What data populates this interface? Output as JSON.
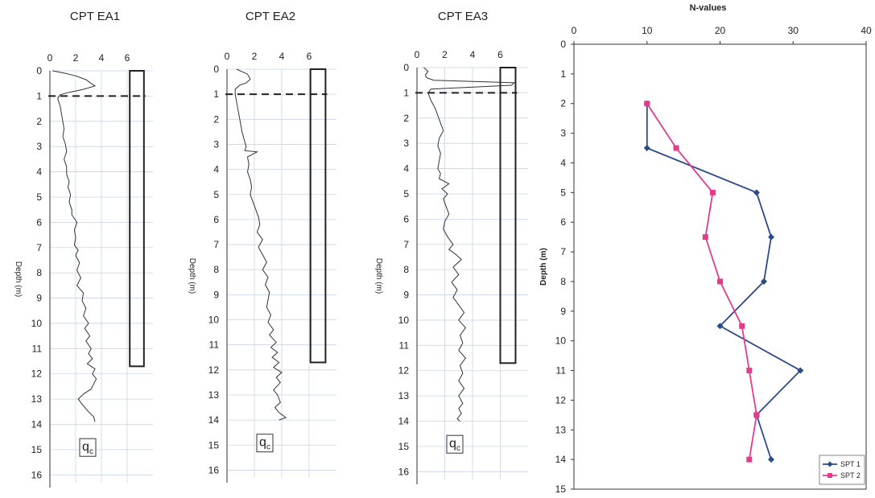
{
  "chart_data": [
    {
      "type": "line",
      "title": "CPT EA1",
      "ylabel": "Depth (m)",
      "xticks": [
        "0",
        "2",
        "4",
        "6"
      ],
      "yticks": [
        "0",
        "1",
        "2",
        "3",
        "4",
        "5",
        "6",
        "7",
        "8",
        "9",
        "10",
        "11",
        "12",
        "13",
        "14",
        "15",
        "16"
      ],
      "xlim": [
        0,
        8
      ],
      "ylim": [
        0,
        16.5
      ],
      "annotation": "q",
      "annotation_sub": "c",
      "water_table_depth": 1.0,
      "overlay_box": {
        "x_from": 6.2,
        "x_to": 7.3,
        "depth_from": 0,
        "depth_to": 11.7
      },
      "series": [
        {
          "x": [
            0.2,
            1.2,
            2.0,
            2.8,
            3.2,
            3.5,
            2.5,
            1.5,
            0.8,
            0.6,
            0.8,
            0.9,
            1.0,
            1.1,
            1.0,
            1.2,
            1.3,
            1.1,
            1.3,
            1.3,
            1.5,
            1.4,
            1.6,
            1.5,
            1.7,
            1.7,
            2.1,
            1.9,
            2.0,
            1.9,
            2.2,
            2.0,
            2.3,
            2.1,
            2.4,
            2.1,
            2.6,
            2.5,
            2.8,
            2.6,
            3.0,
            2.7,
            3.1,
            2.8,
            3.2,
            3.0,
            3.3,
            2.9,
            3.5,
            3.3,
            3.6,
            3.4,
            3.2,
            2.6,
            2.2,
            2.5,
            3.0,
            3.4,
            3.5
          ],
          "y": [
            0,
            0.1,
            0.2,
            0.35,
            0.5,
            0.6,
            0.75,
            0.85,
            0.95,
            1.1,
            1.4,
            1.7,
            2.0,
            2.3,
            2.6,
            2.9,
            3.2,
            3.5,
            3.8,
            4.1,
            4.4,
            4.6,
            4.9,
            5.2,
            5.5,
            5.7,
            6.0,
            6.3,
            6.6,
            6.9,
            7.1,
            7.3,
            7.6,
            7.9,
            8.2,
            8.5,
            8.8,
            9.1,
            9.4,
            9.7,
            10.0,
            10.2,
            10.5,
            10.7,
            11.0,
            11.2,
            11.4,
            11.6,
            11.8,
            12.0,
            12.2,
            12.4,
            12.6,
            12.8,
            13.0,
            13.2,
            13.5,
            13.7,
            13.9
          ]
        }
      ]
    },
    {
      "type": "line",
      "title": "CPT EA2",
      "ylabel": "Depth (m)",
      "xticks": [
        "0",
        "2",
        "4",
        "6"
      ],
      "yticks": [
        "0",
        "1",
        "2",
        "3",
        "4",
        "5",
        "6",
        "7",
        "8",
        "9",
        "10",
        "11",
        "12",
        "13",
        "14",
        "15",
        "16"
      ],
      "xlim": [
        0,
        8
      ],
      "ylim": [
        0,
        16.5
      ],
      "annotation": "q",
      "annotation_sub": "c",
      "water_table_depth": 1.0,
      "overlay_box": {
        "x_from": 6.1,
        "x_to": 7.2,
        "depth_from": 0,
        "depth_to": 11.7
      },
      "series": [
        {
          "x": [
            0.7,
            1.5,
            1.7,
            1.4,
            0.9,
            0.6,
            0.6,
            0.7,
            0.8,
            0.9,
            1.0,
            1.1,
            1.2,
            1.3,
            1.4,
            1.3,
            2.2,
            1.5,
            1.6,
            1.5,
            1.7,
            1.8,
            1.7,
            1.9,
            2.1,
            2.3,
            2.4,
            2.2,
            2.6,
            2.3,
            2.6,
            2.9,
            2.6,
            3.0,
            2.8,
            3.1,
            3.0,
            2.9,
            3.2,
            3.0,
            3.4,
            3.1,
            3.6,
            3.2,
            3.7,
            3.3,
            3.8,
            3.4,
            4.0,
            3.6,
            3.9,
            3.4,
            3.7,
            3.9,
            3.5,
            3.8,
            4.3,
            3.8
          ],
          "y": [
            0,
            0.2,
            0.4,
            0.55,
            0.65,
            0.8,
            1.0,
            1.3,
            1.6,
            1.9,
            2.2,
            2.5,
            2.7,
            2.9,
            3.1,
            3.25,
            3.3,
            3.5,
            3.8,
            4.1,
            4.4,
            4.7,
            5.0,
            5.3,
            5.6,
            5.9,
            6.2,
            6.5,
            6.8,
            7.1,
            7.4,
            7.7,
            8.0,
            8.3,
            8.6,
            8.9,
            9.2,
            9.5,
            9.8,
            10.1,
            10.4,
            10.6,
            10.9,
            11.1,
            11.3,
            11.5,
            11.7,
            11.9,
            12.1,
            12.3,
            12.5,
            12.8,
            13.0,
            13.3,
            13.5,
            13.7,
            13.9,
            14.0
          ]
        }
      ]
    },
    {
      "type": "line",
      "title": "CPT EA3",
      "ylabel": "Depth (m)",
      "xticks": [
        "0",
        "2",
        "4",
        "6"
      ],
      "yticks": [
        "0",
        "1",
        "2",
        "3",
        "4",
        "5",
        "6",
        "7",
        "8",
        "9",
        "10",
        "11",
        "12",
        "13",
        "14",
        "15",
        "16"
      ],
      "xlim": [
        0,
        8
      ],
      "ylim": [
        0,
        16.5
      ],
      "annotation": "q",
      "annotation_sub": "c",
      "water_table_depth": 1.0,
      "overlay_box": {
        "x_from": 6.0,
        "x_to": 7.1,
        "depth_from": 0,
        "depth_to": 11.7
      },
      "series": [
        {
          "x": [
            0.5,
            0.8,
            0.6,
            0.7,
            1.2,
            7.0,
            6.8,
            1.0,
            0.8,
            1.0,
            1.3,
            1.5,
            1.7,
            1.9,
            1.6,
            1.5,
            1.7,
            1.6,
            1.5,
            1.7,
            1.6,
            2.3,
            1.8,
            2.2,
            1.9,
            2.1,
            2.3,
            2.0,
            1.9,
            2.2,
            2.6,
            2.3,
            2.8,
            3.2,
            2.6,
            3.0,
            2.5,
            2.9,
            2.6,
            3.0,
            3.4,
            3.0,
            3.5,
            3.1,
            3.3,
            3.0,
            3.5,
            3.1,
            3.3,
            3.0,
            3.4,
            3.0,
            3.3,
            3.0,
            3.2,
            2.9,
            3.1
          ],
          "y": [
            0,
            0.15,
            0.3,
            0.4,
            0.5,
            0.6,
            0.7,
            0.85,
            1.0,
            1.3,
            1.6,
            1.9,
            2.2,
            2.5,
            2.8,
            3.1,
            3.4,
            3.7,
            4.0,
            4.2,
            4.4,
            4.6,
            4.8,
            5.0,
            5.2,
            5.5,
            5.8,
            6.1,
            6.4,
            6.7,
            7.0,
            7.2,
            7.4,
            7.6,
            7.9,
            8.2,
            8.5,
            8.8,
            9.1,
            9.4,
            9.7,
            10.0,
            10.3,
            10.6,
            10.9,
            11.2,
            11.5,
            11.8,
            12.1,
            12.4,
            12.7,
            13.0,
            13.3,
            13.5,
            13.7,
            13.9,
            14.0
          ]
        }
      ]
    },
    {
      "type": "line",
      "title": "N-values",
      "ylabel": "Depth (m)",
      "xticks": [
        "0",
        "10",
        "20",
        "30",
        "40"
      ],
      "yticks": [
        "0",
        "1",
        "2",
        "3",
        "4",
        "5",
        "6",
        "7",
        "8",
        "9",
        "10",
        "11",
        "12",
        "13",
        "14",
        "15"
      ],
      "xlim": [
        0,
        40
      ],
      "ylim": [
        0,
        15
      ],
      "legend_position": "bottom-right",
      "series": [
        {
          "name": "SPT 1",
          "color": "#2b4a8c",
          "marker": "diamond",
          "x": [
            10,
            10,
            25,
            27,
            26,
            20,
            31,
            25,
            27
          ],
          "y": [
            2,
            3.5,
            5,
            6.5,
            8,
            9.5,
            11,
            12.5,
            14
          ]
        },
        {
          "name": "SPT 2",
          "color": "#e23c8c",
          "marker": "square",
          "x": [
            10,
            14,
            19,
            18,
            20,
            23,
            24,
            25,
            24
          ],
          "y": [
            2,
            3.5,
            5,
            6.5,
            8,
            9.5,
            11,
            12.5,
            14
          ]
        }
      ]
    }
  ]
}
